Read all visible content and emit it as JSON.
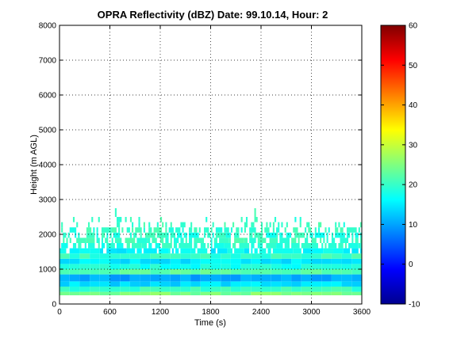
{
  "chart_data": {
    "type": "heatmap",
    "title": "OPRA Reflectivity (dBZ)  Date: 99.10.14, Hour: 2",
    "xlabel": "Time (s)",
    "ylabel": "Height (m AGL)",
    "xlim": [
      0,
      3600
    ],
    "ylim": [
      0,
      8000
    ],
    "xticks": [
      "0",
      "600",
      "1200",
      "1800",
      "2400",
      "3000",
      "3600"
    ],
    "yticks": [
      "0",
      "1000",
      "2000",
      "3000",
      "4000",
      "5000",
      "6000",
      "7000",
      "8000"
    ],
    "grid": true,
    "colorbar": {
      "min": -10,
      "max": 60,
      "colormap": "jet",
      "ticks": [
        "-10",
        "0",
        "10",
        "20",
        "30",
        "40",
        "50",
        "60"
      ]
    },
    "layers": [
      {
        "bottom": 250,
        "top": 350,
        "dbz": 25,
        "coverage": 1.0
      },
      {
        "bottom": 350,
        "top": 500,
        "dbz": 20,
        "coverage": 1.0
      },
      {
        "bottom": 500,
        "top": 650,
        "dbz": 14,
        "coverage": 1.0
      },
      {
        "bottom": 650,
        "top": 850,
        "dbz": 10,
        "coverage": 1.0
      },
      {
        "bottom": 850,
        "top": 1000,
        "dbz": 22,
        "coverage": 1.0
      },
      {
        "bottom": 1000,
        "top": 1150,
        "dbz": 18,
        "coverage": 1.0
      },
      {
        "bottom": 1150,
        "top": 1300,
        "dbz": 15,
        "coverage": 1.0
      },
      {
        "bottom": 1300,
        "top": 1450,
        "dbz": 20,
        "coverage": 1.0
      },
      {
        "bottom": 1450,
        "top": 1600,
        "dbz": 16,
        "coverage": 0.85
      },
      {
        "bottom": 1600,
        "top": 1750,
        "dbz": 19,
        "coverage": 0.8
      },
      {
        "bottom": 1750,
        "top": 1900,
        "dbz": 20,
        "coverage": 0.65
      },
      {
        "bottom": 1900,
        "top": 2050,
        "dbz": 19,
        "coverage": 0.6
      },
      {
        "bottom": 2050,
        "top": 2200,
        "dbz": 20,
        "coverage": 0.55
      },
      {
        "bottom": 2200,
        "top": 2350,
        "dbz": 20,
        "coverage": 0.25
      },
      {
        "bottom": 2350,
        "top": 2500,
        "dbz": 20,
        "coverage": 0.07
      },
      {
        "bottom": 2500,
        "top": 2750,
        "dbz": 20,
        "coverage": 0.03
      }
    ]
  }
}
